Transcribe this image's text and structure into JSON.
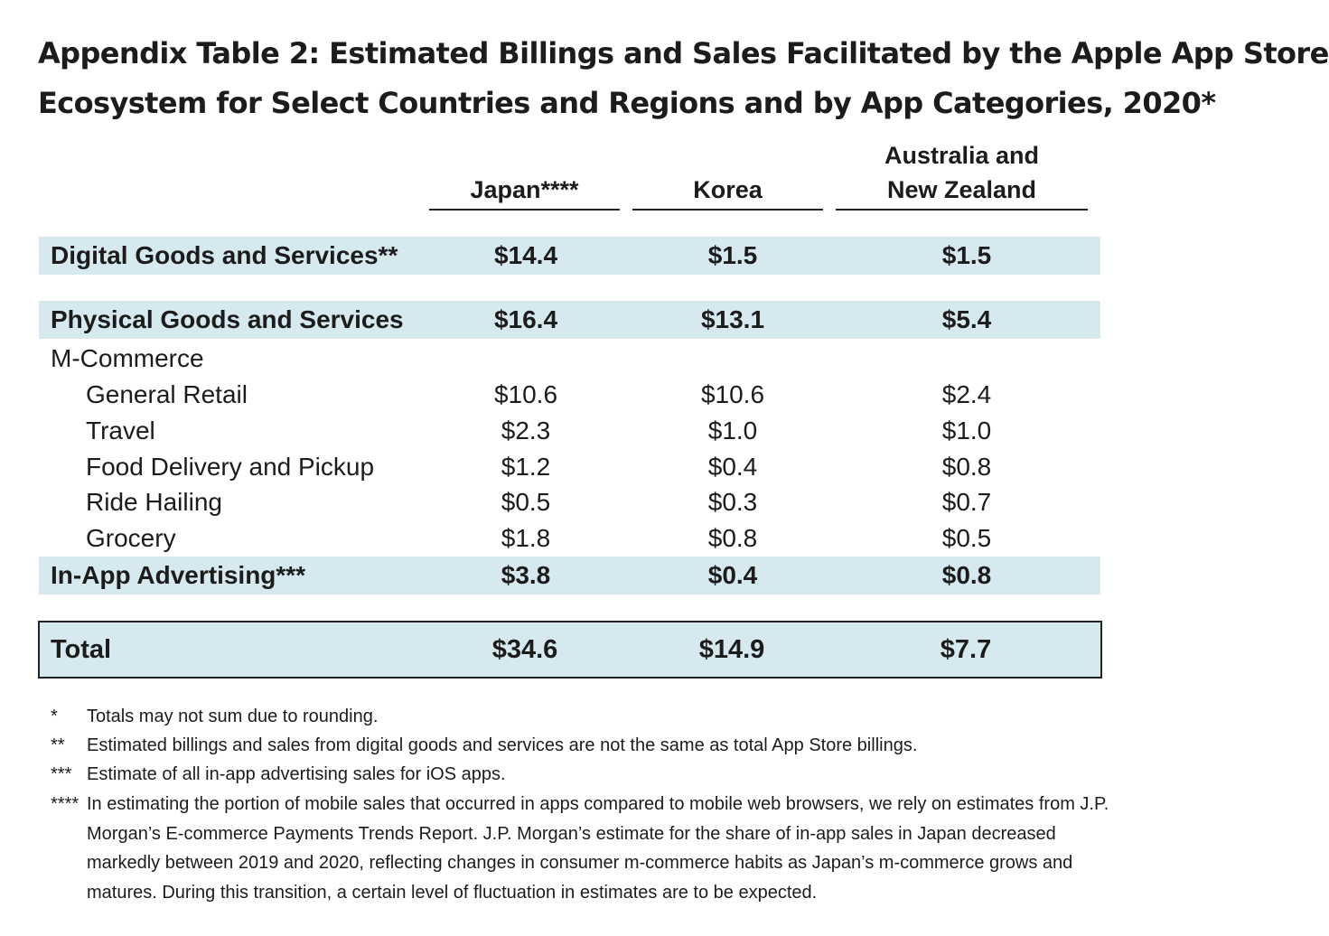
{
  "title": {
    "line1": "Appendix Table 2: Estimated Billings and Sales Facilitated by the Apple App Store",
    "line2": "Ecosystem for Select Countries and Regions and by App Categories, 2020*"
  },
  "columns": [
    {
      "line1": "",
      "line2": "Japan****"
    },
    {
      "line1": "",
      "line2": "Korea"
    },
    {
      "line1": "Australia and",
      "line2": "New Zealand"
    }
  ],
  "rows": [
    {
      "label": "Digital Goods and Services**",
      "values": [
        "$14.4",
        "$1.5",
        "$1.5"
      ]
    },
    {
      "label": "Physical Goods and Services",
      "values": [
        "$16.4",
        "$13.1",
        "$5.4"
      ]
    },
    {
      "label": "M-Commerce",
      "values": [
        "",
        "",
        ""
      ]
    },
    {
      "label": "General Retail",
      "values": [
        "$10.6",
        "$10.6",
        "$2.4"
      ]
    },
    {
      "label": "Travel",
      "values": [
        "$2.3",
        "$1.0",
        "$1.0"
      ]
    },
    {
      "label": "Food Delivery and Pickup",
      "values": [
        "$1.2",
        "$0.4",
        "$0.8"
      ]
    },
    {
      "label": "Ride Hailing",
      "values": [
        "$0.5",
        "$0.3",
        "$0.7"
      ]
    },
    {
      "label": "Grocery",
      "values": [
        "$1.8",
        "$0.8",
        "$0.5"
      ]
    },
    {
      "label": "In-App Advertising***",
      "values": [
        "$3.8",
        "$0.4",
        "$0.8"
      ]
    }
  ],
  "total": {
    "label": "Total",
    "values": [
      "$34.6",
      "$14.9",
      "$7.7"
    ]
  },
  "footnotes": [
    {
      "mark": "*",
      "text": "Totals may not sum due to rounding."
    },
    {
      "mark": "**",
      "text": "Estimated billings and sales from digital goods and services are not the same as total App Store billings."
    },
    {
      "mark": "***",
      "text": "Estimate of all in-app advertising sales for iOS apps."
    },
    {
      "mark": "****",
      "text": "In estimating the portion of mobile sales that occurred in apps compared to mobile web browsers, we rely on estimates from J.P. Morgan’s E-commerce Payments Trends Report. J.P. Morgan’s estimate for the share of in-app sales in Japan decreased markedly between 2019 and 2020, reflecting changes in consumer m-commerce habits as Japan’s m-commerce grows and matures. During this transition, a certain level of fluctuation in estimates are to be expected."
    }
  ]
}
